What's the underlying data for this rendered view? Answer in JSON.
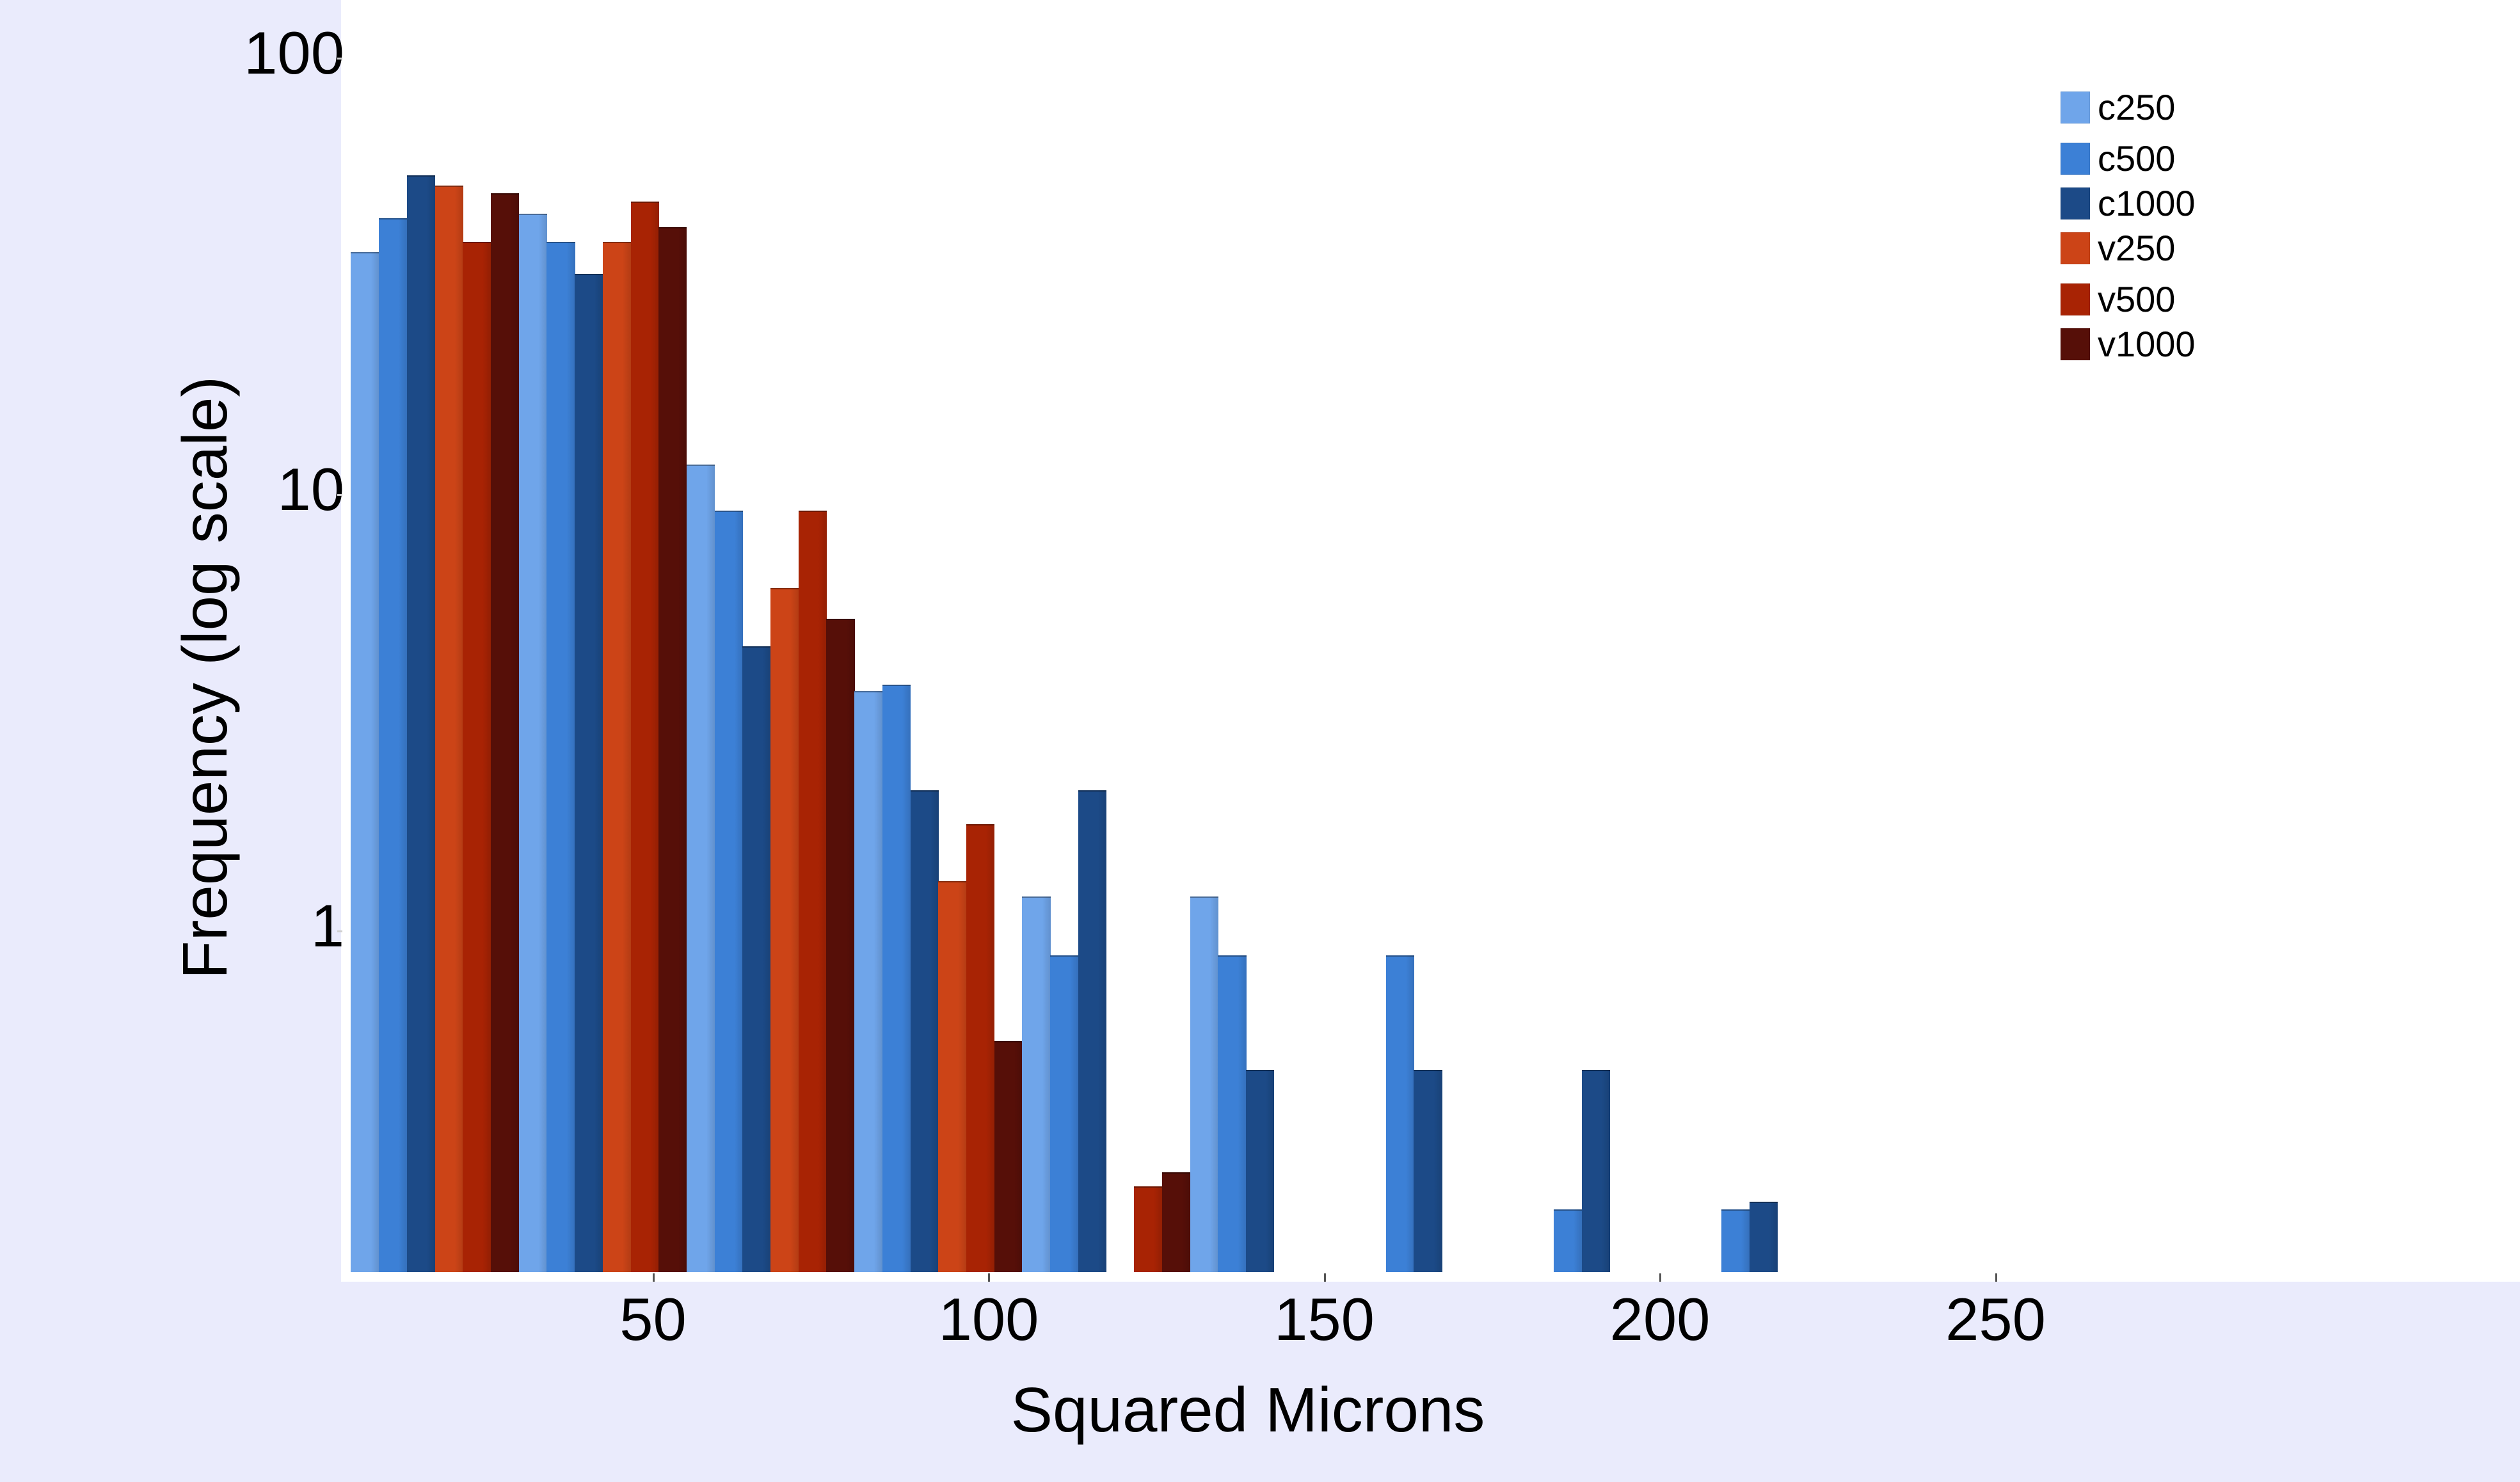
{
  "chart_data": {
    "type": "bar",
    "title": "",
    "xlabel": "Squared Microns",
    "ylabel": "Frequency (log scale)",
    "yscale": "log",
    "ylim": [
      0.16,
      100
    ],
    "xlim": [
      2,
      327
    ],
    "grid": false,
    "legend_position": "upper right",
    "yticks": [
      {
        "value": 100,
        "label": "100"
      },
      {
        "value": 10,
        "label": "10"
      },
      {
        "value": 1,
        "label": "1"
      }
    ],
    "xticks": [
      {
        "value": 50,
        "label": "50"
      },
      {
        "value": 100,
        "label": "100"
      },
      {
        "value": 150,
        "label": "150"
      },
      {
        "value": 200,
        "label": "200"
      },
      {
        "value": 250,
        "label": "250"
      }
    ],
    "bin_edges": [
      5,
      30,
      55,
      80,
      105,
      130,
      155,
      180,
      205,
      230
    ],
    "categories": [
      "5-30",
      "30-55",
      "55-80",
      "80-105",
      "105-130",
      "130-155",
      "155-180",
      "180-205",
      "205-230"
    ],
    "series": [
      {
        "name": "c250",
        "color": "#6fa5ea",
        "values": [
          36,
          44,
          11.7,
          3.55,
          1.2,
          1.2,
          null,
          null,
          null
        ]
      },
      {
        "name": "c500",
        "color": "#3c80d6",
        "values": [
          43,
          38,
          9.2,
          3.67,
          0.88,
          0.88,
          0.88,
          0.23,
          0.23
        ]
      },
      {
        "name": "c1000",
        "color": "#1c4a87",
        "values": [
          54,
          32,
          4.5,
          2.1,
          2.1,
          0.48,
          0.48,
          0.48,
          0.24
        ]
      },
      {
        "name": "v250",
        "color": "#cc4417",
        "values": [
          51,
          38,
          6.1,
          1.3,
          null,
          null,
          null,
          null,
          null
        ]
      },
      {
        "name": "v500",
        "color": "#a82304",
        "values": [
          38,
          47,
          9.2,
          1.76,
          0.26,
          null,
          null,
          null,
          null
        ]
      },
      {
        "name": "v1000",
        "color": "#560f08",
        "values": [
          49,
          41,
          5.2,
          0.56,
          0.28,
          null,
          null,
          null,
          null
        ]
      }
    ]
  }
}
